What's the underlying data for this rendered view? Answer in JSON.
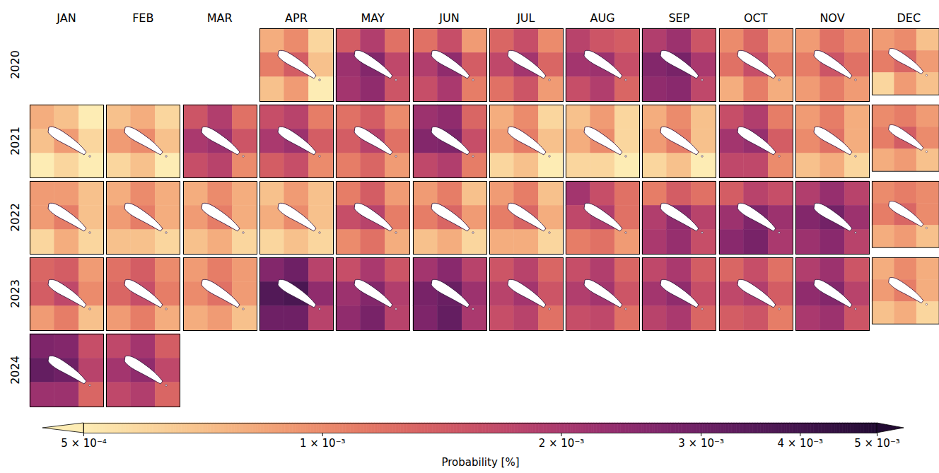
{
  "chart_data": {
    "type": "heatmap",
    "log": true,
    "months": [
      "JAN",
      "FEB",
      "MAR",
      "APR",
      "MAY",
      "JUN",
      "JUL",
      "AUG",
      "SEP",
      "OCT",
      "NOV",
      "DEC"
    ],
    "years": [
      "2020",
      "2021",
      "2022",
      "2023",
      "2024"
    ],
    "colorbar": {
      "label": "Probability [%]",
      "lim": [
        0.0005,
        0.005
      ],
      "ticks": [
        {
          "value": 0.0005,
          "label": "5 × 10⁻⁴"
        },
        {
          "value": 0.001,
          "label": "1 × 10⁻³"
        },
        {
          "value": 0.002,
          "label": "2 × 10⁻³"
        },
        {
          "value": 0.003,
          "label": "3 × 10⁻³"
        },
        {
          "value": 0.004,
          "label": "4 × 10⁻³"
        },
        {
          "value": 0.005,
          "label": "5 × 10⁻³"
        }
      ]
    },
    "panels": [
      {
        "year": "2020",
        "month": "APR",
        "cells": [
          [
            0.0008,
            0.001,
            0.0006
          ],
          [
            0.0011,
            0.0014,
            0.0007
          ],
          [
            0.0007,
            0.0009,
            0.0005
          ]
        ]
      },
      {
        "year": "2020",
        "month": "MAY",
        "cells": [
          [
            0.0014,
            0.0019,
            0.0012
          ],
          [
            0.0022,
            0.0026,
            0.0017
          ],
          [
            0.0021,
            0.0024,
            0.0015
          ]
        ]
      },
      {
        "year": "2020",
        "month": "JUN",
        "cells": [
          [
            0.0012,
            0.0016,
            0.0009
          ],
          [
            0.0019,
            0.0024,
            0.0014
          ],
          [
            0.0016,
            0.002,
            0.0011
          ]
        ]
      },
      {
        "year": "2020",
        "month": "JUL",
        "cells": [
          [
            0.0013,
            0.0016,
            0.001
          ],
          [
            0.0017,
            0.0021,
            0.0013
          ],
          [
            0.0012,
            0.0015,
            0.0009
          ]
        ]
      },
      {
        "year": "2020",
        "month": "AUG",
        "cells": [
          [
            0.0018,
            0.0015,
            0.0014
          ],
          [
            0.0021,
            0.0022,
            0.0016
          ],
          [
            0.0016,
            0.0019,
            0.0013
          ]
        ]
      },
      {
        "year": "2020",
        "month": "SEP",
        "cells": [
          [
            0.0019,
            0.0022,
            0.0015
          ],
          [
            0.0026,
            0.0028,
            0.002
          ],
          [
            0.0024,
            0.0025,
            0.0017
          ]
        ]
      },
      {
        "year": "2020",
        "month": "OCT",
        "cells": [
          [
            0.001,
            0.0013,
            0.0009
          ],
          [
            0.0012,
            0.0016,
            0.0011
          ],
          [
            0.0008,
            0.0011,
            0.0008
          ]
        ]
      },
      {
        "year": "2020",
        "month": "NOV",
        "cells": [
          [
            0.0009,
            0.0012,
            0.001
          ],
          [
            0.0011,
            0.0015,
            0.0012
          ],
          [
            0.0009,
            0.0011,
            0.0009
          ]
        ]
      },
      {
        "year": "2020",
        "month": "DEC",
        "cells": [
          [
            0.0009,
            0.001,
            0.0007
          ],
          [
            0.0011,
            0.0013,
            0.0009
          ],
          [
            0.0006,
            0.0009,
            0.0007
          ]
        ]
      },
      {
        "year": "2021",
        "month": "JAN",
        "cells": [
          [
            0.0008,
            0.0007,
            0.0005
          ],
          [
            0.0007,
            0.0009,
            0.0006
          ],
          [
            0.0005,
            0.0006,
            0.0005
          ]
        ]
      },
      {
        "year": "2021",
        "month": "FEB",
        "cells": [
          [
            0.0007,
            0.0008,
            0.0006
          ],
          [
            0.0009,
            0.001,
            0.0007
          ],
          [
            0.0006,
            0.0007,
            0.0005
          ]
        ]
      },
      {
        "year": "2021",
        "month": "MAR",
        "cells": [
          [
            0.0015,
            0.0019,
            0.0012
          ],
          [
            0.002,
            0.0022,
            0.0015
          ],
          [
            0.0016,
            0.0018,
            0.001
          ]
        ]
      },
      {
        "year": "2021",
        "month": "APR",
        "cells": [
          [
            0.0016,
            0.0018,
            0.0011
          ],
          [
            0.002,
            0.0022,
            0.0014
          ],
          [
            0.0014,
            0.0016,
            0.001
          ]
        ]
      },
      {
        "year": "2021",
        "month": "MAY",
        "cells": [
          [
            0.0012,
            0.0014,
            0.001
          ],
          [
            0.0014,
            0.0018,
            0.0012
          ],
          [
            0.0011,
            0.0013,
            0.0009
          ]
        ]
      },
      {
        "year": "2021",
        "month": "JUN",
        "cells": [
          [
            0.0022,
            0.0024,
            0.0013
          ],
          [
            0.0026,
            0.0027,
            0.0016
          ],
          [
            0.0017,
            0.0019,
            0.0011
          ]
        ]
      },
      {
        "year": "2021",
        "month": "JUL",
        "cells": [
          [
            0.0008,
            0.001,
            0.0006
          ],
          [
            0.0009,
            0.0011,
            0.0007
          ],
          [
            0.0006,
            0.0007,
            0.0005
          ]
        ]
      },
      {
        "year": "2021",
        "month": "AUG",
        "cells": [
          [
            0.0007,
            0.0009,
            0.0006
          ],
          [
            0.0008,
            0.001,
            0.0006
          ],
          [
            0.0006,
            0.0006,
            0.0005
          ]
        ]
      },
      {
        "year": "2021",
        "month": "SEP",
        "cells": [
          [
            0.0008,
            0.001,
            0.0007
          ],
          [
            0.0009,
            0.0011,
            0.0007
          ],
          [
            0.0006,
            0.0007,
            0.0005
          ]
        ]
      },
      {
        "year": "2021",
        "month": "OCT",
        "cells": [
          [
            0.0016,
            0.0019,
            0.0011
          ],
          [
            0.0021,
            0.0023,
            0.0014
          ],
          [
            0.0017,
            0.0017,
            0.001
          ]
        ]
      },
      {
        "year": "2021",
        "month": "NOV",
        "cells": [
          [
            0.0009,
            0.0011,
            0.0008
          ],
          [
            0.001,
            0.0012,
            0.0008
          ],
          [
            0.0007,
            0.0008,
            0.0006
          ]
        ]
      },
      {
        "year": "2021",
        "month": "DEC",
        "cells": [
          [
            0.001,
            0.0011,
            0.0009
          ],
          [
            0.0011,
            0.0014,
            0.001
          ],
          [
            0.0008,
            0.0009,
            0.0007
          ]
        ]
      },
      {
        "year": "2022",
        "month": "JAN",
        "cells": [
          [
            0.0009,
            0.0009,
            0.0007
          ],
          [
            0.0009,
            0.0011,
            0.0007
          ],
          [
            0.0006,
            0.0008,
            0.0006
          ]
        ]
      },
      {
        "year": "2022",
        "month": "FEB",
        "cells": [
          [
            0.0008,
            0.001,
            0.0008
          ],
          [
            0.0009,
            0.0011,
            0.0008
          ],
          [
            0.0007,
            0.0007,
            0.0006
          ]
        ]
      },
      {
        "year": "2022",
        "month": "MAR",
        "cells": [
          [
            0.0008,
            0.001,
            0.0008
          ],
          [
            0.0009,
            0.0011,
            0.0008
          ],
          [
            0.0007,
            0.0008,
            0.0006
          ]
        ]
      },
      {
        "year": "2022",
        "month": "APR",
        "cells": [
          [
            0.0007,
            0.0009,
            0.0007
          ],
          [
            0.0008,
            0.001,
            0.0007
          ],
          [
            0.0006,
            0.0007,
            0.0006
          ]
        ]
      },
      {
        "year": "2022",
        "month": "MAY",
        "cells": [
          [
            0.0011,
            0.0014,
            0.0009
          ],
          [
            0.0016,
            0.0018,
            0.0011
          ],
          [
            0.001,
            0.0012,
            0.0008
          ]
        ]
      },
      {
        "year": "2022",
        "month": "JUN",
        "cells": [
          [
            0.0009,
            0.0011,
            0.0007
          ],
          [
            0.0011,
            0.0013,
            0.0009
          ],
          [
            0.0007,
            0.0008,
            0.0006
          ]
        ]
      },
      {
        "year": "2022",
        "month": "JUL",
        "cells": [
          [
            0.0009,
            0.0011,
            0.0007
          ],
          [
            0.0011,
            0.0013,
            0.0008
          ],
          [
            0.0008,
            0.0008,
            0.0006
          ]
        ]
      },
      {
        "year": "2022",
        "month": "AUG",
        "cells": [
          [
            0.0021,
            0.0016,
            0.0012
          ],
          [
            0.0017,
            0.0019,
            0.0012
          ],
          [
            0.0011,
            0.0012,
            0.0009
          ]
        ]
      },
      {
        "year": "2022",
        "month": "SEP",
        "cells": [
          [
            0.0011,
            0.0014,
            0.0012
          ],
          [
            0.0019,
            0.0024,
            0.0018
          ],
          [
            0.002,
            0.0023,
            0.0016
          ]
        ]
      },
      {
        "year": "2022",
        "month": "OCT",
        "cells": [
          [
            0.0014,
            0.0018,
            0.0016
          ],
          [
            0.0022,
            0.0027,
            0.0022
          ],
          [
            0.0025,
            0.0028,
            0.002
          ]
        ]
      },
      {
        "year": "2022",
        "month": "NOV",
        "cells": [
          [
            0.0019,
            0.0023,
            0.0018
          ],
          [
            0.0026,
            0.0029,
            0.0022
          ],
          [
            0.0022,
            0.0025,
            0.0018
          ]
        ]
      },
      {
        "year": "2022",
        "month": "DEC",
        "cells": [
          [
            0.001,
            0.0011,
            0.001
          ],
          [
            0.0011,
            0.0013,
            0.001
          ],
          [
            0.0008,
            0.0009,
            0.0007
          ]
        ]
      },
      {
        "year": "2023",
        "month": "JAN",
        "cells": [
          [
            0.0013,
            0.0014,
            0.0009
          ],
          [
            0.0014,
            0.0017,
            0.001
          ],
          [
            0.0009,
            0.0011,
            0.0007
          ]
        ]
      },
      {
        "year": "2023",
        "month": "FEB",
        "cells": [
          [
            0.0012,
            0.0014,
            0.001
          ],
          [
            0.0013,
            0.0016,
            0.0011
          ],
          [
            0.0009,
            0.0011,
            0.0008
          ]
        ]
      },
      {
        "year": "2023",
        "month": "MAR",
        "cells": [
          [
            0.0009,
            0.0011,
            0.0009
          ],
          [
            0.001,
            0.0012,
            0.0009
          ],
          [
            0.0008,
            0.0009,
            0.0007
          ]
        ]
      },
      {
        "year": "2023",
        "month": "APR",
        "cells": [
          [
            0.0026,
            0.003,
            0.0018
          ],
          [
            0.0036,
            0.0038,
            0.0024
          ],
          [
            0.003,
            0.003,
            0.0018
          ]
        ]
      },
      {
        "year": "2023",
        "month": "MAY",
        "cells": [
          [
            0.0016,
            0.002,
            0.0015
          ],
          [
            0.0022,
            0.0026,
            0.0019
          ],
          [
            0.0024,
            0.0028,
            0.0018
          ]
        ]
      },
      {
        "year": "2023",
        "month": "JUN",
        "cells": [
          [
            0.0021,
            0.0025,
            0.0018
          ],
          [
            0.0028,
            0.0031,
            0.0022
          ],
          [
            0.0027,
            0.0032,
            0.002
          ]
        ]
      },
      {
        "year": "2023",
        "month": "JUL",
        "cells": [
          [
            0.0015,
            0.0018,
            0.0013
          ],
          [
            0.0018,
            0.0021,
            0.0015
          ],
          [
            0.0016,
            0.0018,
            0.0012
          ]
        ]
      },
      {
        "year": "2023",
        "month": "AUG",
        "cells": [
          [
            0.0016,
            0.0019,
            0.0013
          ],
          [
            0.0019,
            0.0021,
            0.0015
          ],
          [
            0.0016,
            0.0017,
            0.0012
          ]
        ]
      },
      {
        "year": "2023",
        "month": "SEP",
        "cells": [
          [
            0.0017,
            0.002,
            0.0014
          ],
          [
            0.0021,
            0.0024,
            0.0016
          ],
          [
            0.0018,
            0.002,
            0.0013
          ]
        ]
      },
      {
        "year": "2023",
        "month": "OCT",
        "cells": [
          [
            0.0013,
            0.0016,
            0.0012
          ],
          [
            0.0017,
            0.0019,
            0.0014
          ],
          [
            0.0014,
            0.0015,
            0.0011
          ]
        ]
      },
      {
        "year": "2023",
        "month": "NOV",
        "cells": [
          [
            0.0019,
            0.0022,
            0.0015
          ],
          [
            0.0024,
            0.0026,
            0.0018
          ],
          [
            0.002,
            0.0022,
            0.0015
          ]
        ]
      },
      {
        "year": "2023",
        "month": "DEC",
        "cells": [
          [
            0.0008,
            0.001,
            0.0008
          ],
          [
            0.0009,
            0.0011,
            0.0008
          ],
          [
            0.0007,
            0.0008,
            0.0006
          ]
        ]
      },
      {
        "year": "2024",
        "month": "JAN",
        "cells": [
          [
            0.0027,
            0.0026,
            0.0016
          ],
          [
            0.0032,
            0.003,
            0.0018
          ],
          [
            0.0022,
            0.0022,
            0.0013
          ]
        ]
      },
      {
        "year": "2024",
        "month": "FEB",
        "cells": [
          [
            0.0017,
            0.0021,
            0.0014
          ],
          [
            0.0021,
            0.0024,
            0.0017
          ],
          [
            0.0017,
            0.0019,
            0.0013
          ]
        ]
      }
    ]
  }
}
